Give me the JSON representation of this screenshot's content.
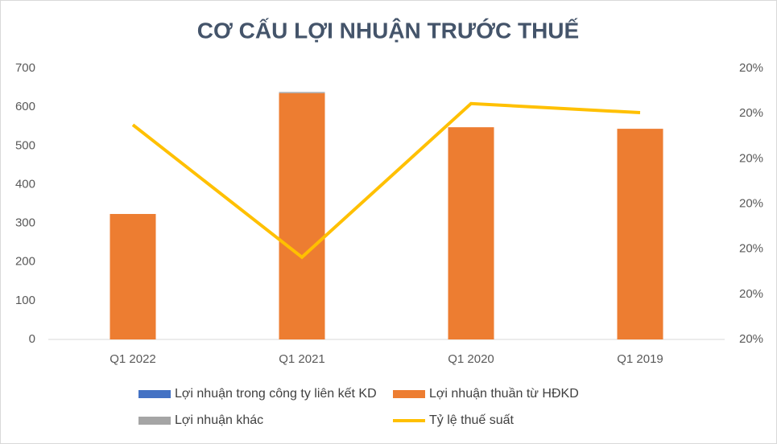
{
  "chart_data": {
    "type": "bar",
    "title": "CƠ CẤU LỢI NHUẬN TRƯỚC THUẾ",
    "categories": [
      "Q1 2022",
      "Q1 2021",
      "Q1 2020",
      "Q1 2019"
    ],
    "series": [
      {
        "name": "Lợi nhuận trong công ty liên kết KD",
        "color": "#4472c4",
        "values": [
          0,
          0,
          0,
          0
        ]
      },
      {
        "name": "Lợi nhuận thuần từ HĐKD",
        "color": "#ed7d31",
        "values": [
          324,
          636,
          548,
          544
        ]
      },
      {
        "name": "Lợi nhuận khác",
        "color": "#a5a5a5",
        "values": [
          0,
          3,
          0,
          0
        ]
      },
      {
        "name": "Tỷ lệ thuế suất",
        "color": "#ffc000",
        "type": "line",
        "axis": "y2",
        "values": [
          20.175,
          19.882,
          20.222,
          20.202
        ]
      }
    ],
    "ylim": [
      0,
      700
    ],
    "yticks": [
      0,
      100,
      200,
      300,
      400,
      500,
      600,
      700
    ],
    "y2lim": [
      19.7,
      20.3
    ],
    "y2ticks": [
      {
        "value": 19.7,
        "label": "20%"
      },
      {
        "value": 19.8,
        "label": "20%"
      },
      {
        "value": 19.9,
        "label": "20%"
      },
      {
        "value": 20.0,
        "label": "20%"
      },
      {
        "value": 20.1,
        "label": "20%"
      },
      {
        "value": 20.2,
        "label": "20%"
      },
      {
        "value": 20.3,
        "label": "20%"
      }
    ],
    "grid": false,
    "legend": "bottom"
  }
}
